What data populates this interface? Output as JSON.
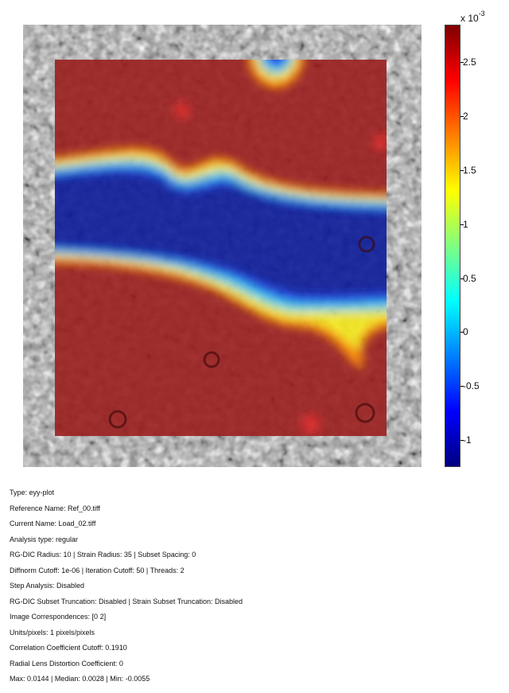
{
  "colorbar": {
    "exponent_prefix": "x 10",
    "exponent": "-3",
    "ticks": [
      "2.5",
      "2",
      "1.5",
      "1",
      "0.5",
      "0",
      "-0.5",
      "-1"
    ],
    "tick_values": [
      2.5,
      2,
      1.5,
      1,
      0.5,
      0,
      -0.5,
      -1
    ],
    "range": [
      -1.25,
      2.85
    ],
    "colormap": "jet"
  },
  "plot": {
    "type": "eyy strain overlay on speckle image",
    "background_gray": "#9a9a9a",
    "overlay_opacity": 0.8
  },
  "info": [
    "Type: eyy-plot",
    "Reference Name: Ref_00.tiff",
    "Current Name: Load_02.tiff",
    "Analysis type: regular",
    "RG-DIC Radius: 10 | Strain Radius: 35 | Subset Spacing: 0",
    "Diffnorm Cutoff: 1e-06 | Iteration Cutoff: 50 | Threads: 2",
    "Step Analysis: Disabled",
    "RG-DIC Subset Truncation: Disabled | Strain Subset Truncation: Disabled",
    "Image Correspondences: [0 2]",
    "Units/pixels: 1 pixels/pixels",
    "Correlation Coefficient Cutoff: 0.1910",
    "Radial Lens Distortion Coefficient: 0",
    "Max: 0.0144 | Median: 0.0028 | Min: -0.0055"
  ]
}
